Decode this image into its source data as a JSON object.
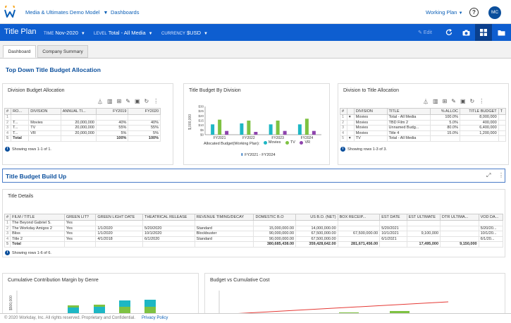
{
  "topbar": {
    "model_name": "Media & Ultimates Demo Model",
    "dashboards_link": "Dashboards",
    "working_plan": "Working Plan",
    "help": "?",
    "avatar_initials": "MC"
  },
  "header": {
    "title": "Title Plan",
    "time_label": "TIME",
    "time_value": "Nov-2020",
    "level_label": "LEVEL",
    "level_value": "Total - All Media",
    "currency_label": "CURRENCY",
    "currency_value": "$USD",
    "edit_label": "Edit"
  },
  "tabs": [
    {
      "label": "Dashboard",
      "active": true
    },
    {
      "label": "Company Summary",
      "active": false
    }
  ],
  "sections": {
    "top_down": "Top Down Title Budget Allocation",
    "build_up": "Title Budget Build Up"
  },
  "division_budget": {
    "title": "Division Budget Allocation",
    "columns": [
      "#",
      "RO...",
      "DIVISION",
      "ANNUAL TI...",
      "FY2019",
      "FY2020"
    ],
    "rows": [
      [
        "1",
        "",
        "",
        "",
        "",
        ""
      ],
      [
        "2",
        "T...",
        "Movies",
        "20,000,000",
        "40%",
        "40%"
      ],
      [
        "3",
        "T...",
        "TV",
        "20,000,000",
        "55%",
        "55%"
      ],
      [
        "4",
        "T...",
        "VR",
        "20,000,000",
        "5%",
        "5%"
      ],
      [
        "5",
        "Total",
        "",
        "",
        "100%",
        "100%"
      ]
    ],
    "showing": "Showing rows 1-1 of 1."
  },
  "title_budget_chart": {
    "title": "Title Budget By Division",
    "legend_title": "Allocated Budget(Working Plan):",
    "filter_label": "FY2021 - FY2024",
    "colors": {
      "Movies": "#1db7c4",
      "TV": "#7ec242",
      "VR": "#8e44ad",
      "axis": "#555555"
    }
  },
  "chart_data": {
    "type": "bar",
    "title": "Title Budget By Division",
    "ylabel": "$,000,000",
    "categories": [
      "FY2021",
      "FY2022",
      "FY2023",
      "FY2024"
    ],
    "yticks": [
      "$0",
      "$5",
      "$10",
      "$15",
      "$20",
      "$25",
      "$30"
    ],
    "ylim": [
      0,
      30
    ],
    "series": [
      {
        "name": "Movies",
        "values": [
          11,
          12,
          11,
          11
        ]
      },
      {
        "name": "TV",
        "values": [
          16,
          15,
          15,
          17
        ]
      },
      {
        "name": "VR",
        "values": [
          4,
          3,
          4,
          4
        ]
      }
    ],
    "legend_placement": "bottom"
  },
  "division_title": {
    "title": "Division to Title Allocation",
    "columns": [
      "#",
      "",
      "DIVISION",
      "TITLE",
      "% ALLOC",
      "TITLE BUDGET",
      "T"
    ],
    "rows": [
      [
        "1",
        "▾",
        "Movies",
        "Total - All Media",
        "100.0%",
        "8,000,000",
        ""
      ],
      [
        "2",
        "",
        "Movies",
        "TBD Film 2",
        "5.0%",
        "400,000",
        ""
      ],
      [
        "3",
        "",
        "Movies",
        "Unnamed Budg...",
        "80.0%",
        "6,400,000",
        ""
      ],
      [
        "4",
        "",
        "Movies",
        "Title 4",
        "15.0%",
        "1,200,000",
        ""
      ],
      [
        "5",
        "▾",
        "TV",
        "Total - All Media",
        "",
        "",
        ""
      ]
    ],
    "showing": "Showing rows 1-3 of 3."
  },
  "title_details": {
    "title": "Title Details",
    "columns": [
      "#",
      "FILM / TITLE",
      "GREEN LIT?",
      "GREEN LIGHT DATE",
      "THEATRICAL RELEASE",
      "REVENUE TIMING/DECAY",
      "DOMESTIC B.O",
      "US B.O. (NET)",
      "BOX RECEIP...",
      "EST DATE",
      "EST ULTIMATE",
      "DTR ULTIMA...",
      "VOD DA..."
    ],
    "rows": [
      [
        "1",
        "The Beyond Gabriel S.",
        "Yes",
        "",
        "",
        "",
        "",
        "",
        "",
        "",
        "",
        "",
        ""
      ],
      [
        "2",
        "The Workday Amigos 2",
        "Yes",
        "1/1/2020",
        "5/20/2020",
        "Standard",
        "15,000,000.00",
        "14,000,000.00",
        "",
        "5/20/2021",
        "",
        "",
        "5/20/20..."
      ],
      [
        "3",
        "Bliss",
        "Yes",
        "1/1/2020",
        "10/1/2020",
        "Blockbuster",
        "90,000,000.00",
        "67,500,000.00",
        "67,500,000.00",
        "10/1/2021",
        "9,100,000",
        "",
        "10/1/20..."
      ],
      [
        "4",
        "Title 2",
        "Yes",
        "4/1/2018",
        "6/1/2020",
        "Standard",
        "90,000,000.00",
        "67,500,000.00",
        "",
        "6/1/2021",
        "",
        "",
        "6/1/20..."
      ],
      [
        "5",
        "Total",
        "",
        "",
        "",
        "",
        "380,685,438.00",
        "359,428,642.00",
        "281,671,456.00",
        "",
        "17,495,000",
        "9,150,000",
        ""
      ]
    ],
    "showing": "Showing rows 1-6 of 6."
  },
  "bottom_panels": {
    "left_title": "Cumulative Contribution Margin by Genre",
    "right_title": "Budget vs Cumulative Cost",
    "left_ytick": "$500,000"
  },
  "footer": {
    "copyright": "© 2020 Workday, Inc. All rights reserved. Proprietary and Confidential.",
    "privacy": "Privacy Policy"
  }
}
